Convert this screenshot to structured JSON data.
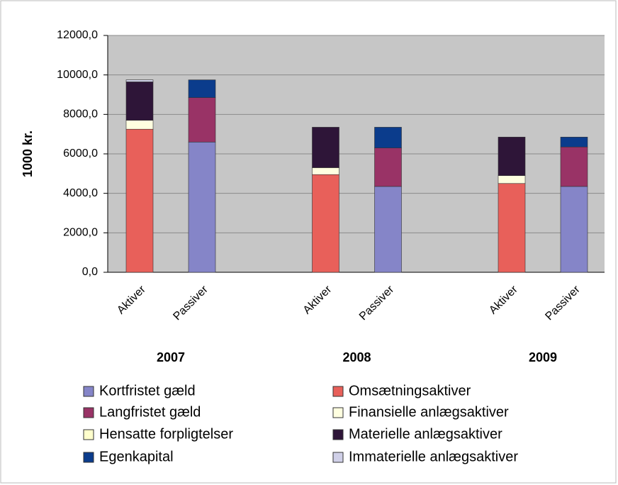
{
  "chart_data": {
    "type": "stacked_bar",
    "y_label": "1000 kr.",
    "groups": [
      "2007",
      "2008",
      "2009"
    ],
    "categories": [
      "Aktiver",
      "Passiver",
      "Aktiver",
      "Passiver",
      "Aktiver",
      "Passiver"
    ],
    "series": [
      {
        "name": "Kortfristet gæld",
        "color": "#8585c8",
        "values": [
          null,
          6600,
          null,
          4350,
          null,
          4350
        ]
      },
      {
        "name": "Omsætningsaktiver",
        "color": "#e8605a",
        "values": [
          7250,
          null,
          4950,
          null,
          4500,
          null
        ]
      },
      {
        "name": "Langfristet gæld",
        "color": "#993366",
        "values": [
          null,
          2250,
          null,
          1950,
          null,
          2000
        ]
      },
      {
        "name": "Finansielle anlægsaktiver",
        "color": "#ffffe0",
        "values": [
          450,
          null,
          350,
          null,
          400,
          null
        ]
      },
      {
        "name": "Hensatte forpligtelser",
        "color": "#ffffcc",
        "values": [
          null,
          null,
          null,
          null,
          null,
          null
        ]
      },
      {
        "name": "Materielle anlægsaktiver",
        "color": "#2e1538",
        "values": [
          1950,
          null,
          2050,
          null,
          1950,
          null
        ]
      },
      {
        "name": "Egenkapital",
        "color": "#0b3c8c",
        "values": [
          null,
          900,
          null,
          1050,
          null,
          500
        ]
      },
      {
        "name": "Immaterielle anlægsaktiver",
        "color": "#d0d0e8",
        "values": [
          100,
          null,
          null,
          null,
          null,
          null
        ]
      }
    ],
    "ylim": [
      0,
      12000
    ],
    "yticks": [
      {
        "value": 0,
        "label": "0,0"
      },
      {
        "value": 2000,
        "label": "2000,0"
      },
      {
        "value": 4000,
        "label": "4000,0"
      },
      {
        "value": 6000,
        "label": "6000,0"
      },
      {
        "value": 8000,
        "label": "8000,0"
      },
      {
        "value": 10000,
        "label": "10000,0"
      },
      {
        "value": 12000,
        "label": "12000,0"
      }
    ],
    "grid": true
  }
}
